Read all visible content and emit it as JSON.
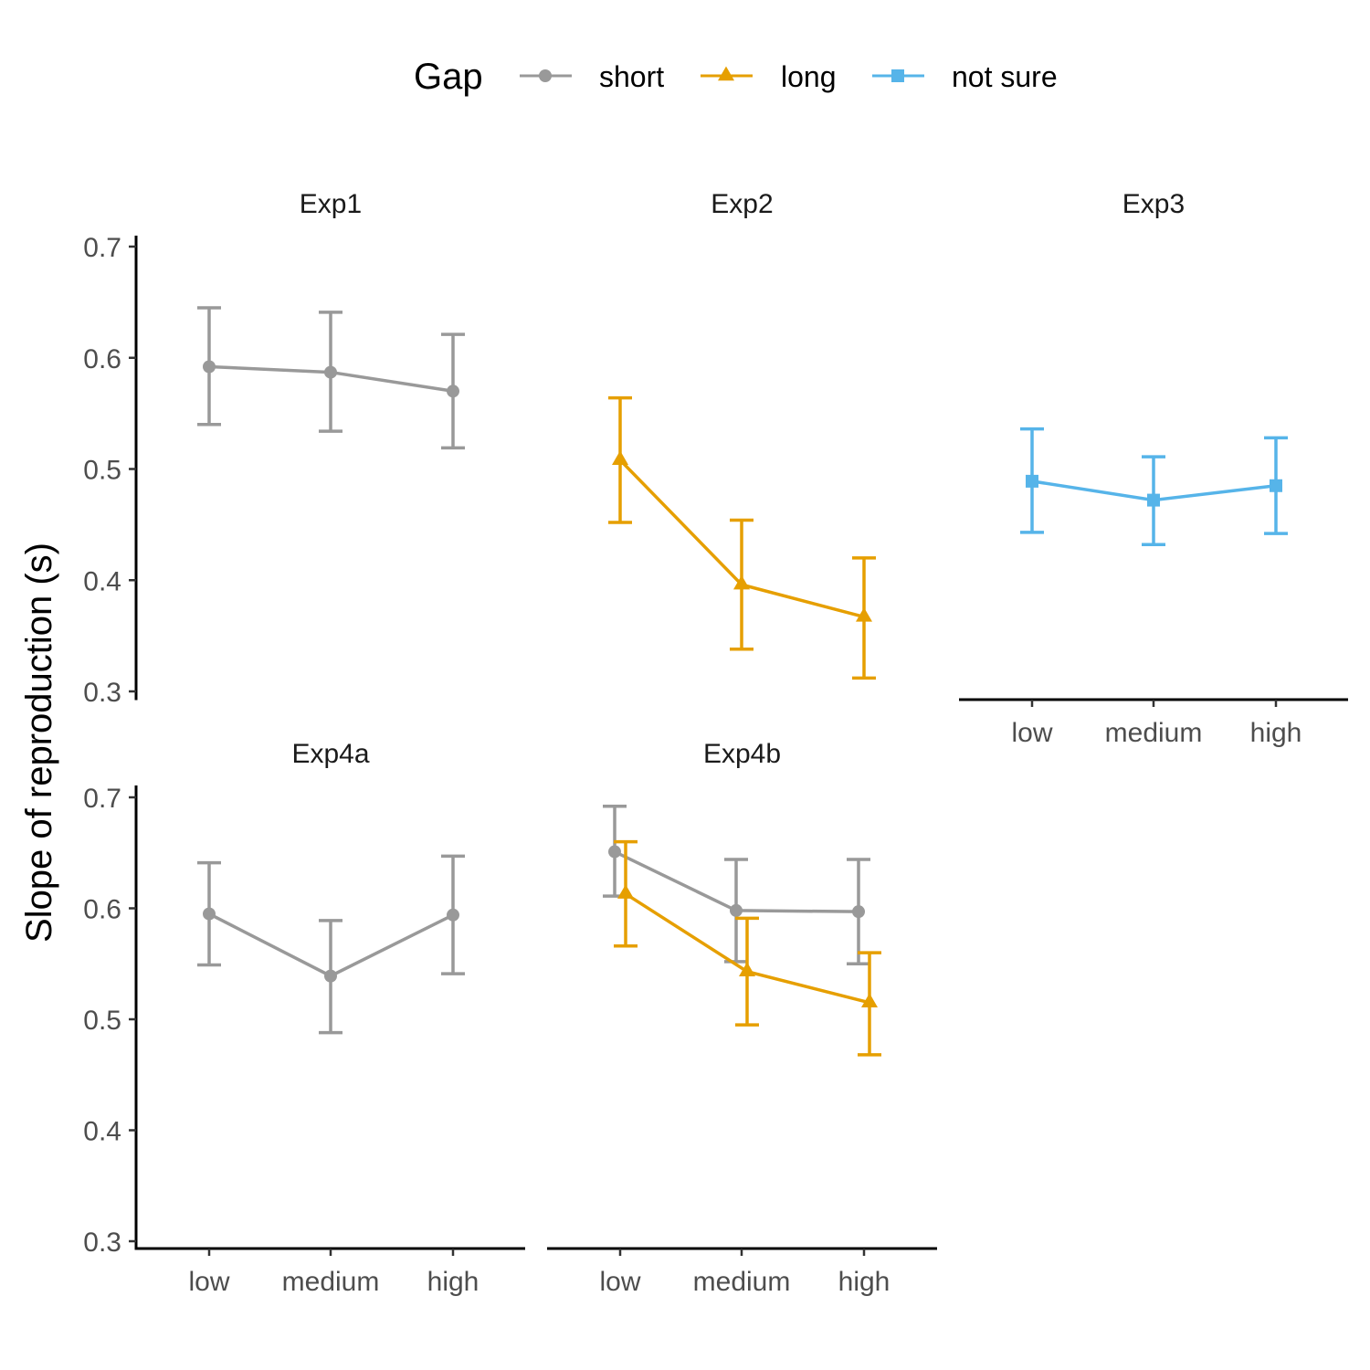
{
  "chart_data": {
    "type": "line",
    "ylabel": "Slope of reproduction (s)",
    "xlabel": "",
    "categories": [
      "low",
      "medium",
      "high"
    ],
    "y_ticks": [
      "0.3",
      "0.4",
      "0.5",
      "0.6",
      "0.7"
    ],
    "ylim": [
      0.3,
      0.7
    ],
    "grid": false,
    "legend": {
      "title": "Gap",
      "position": "top",
      "entries": [
        {
          "name": "short",
          "color": "#999999",
          "shape": "circle"
        },
        {
          "name": "long",
          "color": "#E69F00",
          "shape": "triangle"
        },
        {
          "name": "not sure",
          "color": "#56B4E9",
          "shape": "square"
        }
      ]
    },
    "panels": [
      {
        "title": "Exp1",
        "series": [
          {
            "name": "short",
            "values": [
              0.592,
              0.587,
              0.57
            ],
            "lower": [
              0.54,
              0.534,
              0.519
            ],
            "upper": [
              0.645,
              0.641,
              0.621
            ]
          }
        ]
      },
      {
        "title": "Exp2",
        "series": [
          {
            "name": "long",
            "values": [
              0.508,
              0.396,
              0.367
            ],
            "lower": [
              0.452,
              0.338,
              0.312
            ],
            "upper": [
              0.564,
              0.454,
              0.42
            ]
          }
        ]
      },
      {
        "title": "Exp3",
        "series": [
          {
            "name": "not sure",
            "values": [
              0.489,
              0.472,
              0.485
            ],
            "lower": [
              0.443,
              0.432,
              0.442
            ],
            "upper": [
              0.536,
              0.511,
              0.528
            ]
          }
        ]
      },
      {
        "title": "Exp4a",
        "series": [
          {
            "name": "short",
            "values": [
              0.595,
              0.539,
              0.594
            ],
            "lower": [
              0.549,
              0.488,
              0.541
            ],
            "upper": [
              0.641,
              0.589,
              0.647
            ]
          }
        ]
      },
      {
        "title": "Exp4b",
        "series": [
          {
            "name": "short",
            "values": [
              0.651,
              0.598,
              0.597
            ],
            "lower": [
              0.611,
              0.552,
              0.55
            ],
            "upper": [
              0.692,
              0.644,
              0.644
            ]
          },
          {
            "name": "long",
            "values": [
              0.613,
              0.543,
              0.515
            ],
            "lower": [
              0.566,
              0.495,
              0.468
            ],
            "upper": [
              0.66,
              0.591,
              0.56
            ]
          }
        ]
      }
    ]
  }
}
